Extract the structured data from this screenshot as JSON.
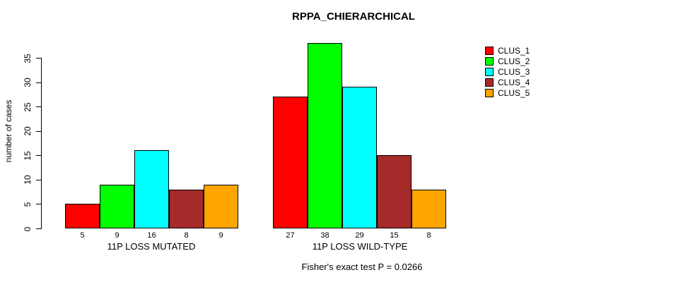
{
  "title": "RPPA_CHIERARCHICAL",
  "footer": "Fisher's exact test P = 0.0266",
  "chart_data": {
    "type": "bar",
    "title": "RPPA_CHIERARCHICAL",
    "xlabel": "",
    "ylabel": "number of cases",
    "categories": [
      "11P LOSS MUTATED",
      "11P LOSS WILD-TYPE"
    ],
    "series": [
      {
        "name": "CLUS_1",
        "color": "#FF0000",
        "values": [
          5,
          27
        ]
      },
      {
        "name": "CLUS_2",
        "color": "#00FF00",
        "values": [
          9,
          38
        ]
      },
      {
        "name": "CLUS_3",
        "color": "#00FFFF",
        "values": [
          16,
          29
        ]
      },
      {
        "name": "CLUS_4",
        "color": "#A52A2A",
        "values": [
          8,
          15
        ]
      },
      {
        "name": "CLUS_5",
        "color": "#FFA500",
        "values": [
          9,
          8
        ]
      }
    ],
    "y_ticks": [
      0,
      5,
      10,
      15,
      20,
      25,
      30,
      35
    ],
    "ylim": [
      0,
      35
    ],
    "grid": false,
    "bar_value_labels_shown": true,
    "legend_position": "top-right",
    "annotation": "Fisher's exact test P = 0.0266"
  }
}
